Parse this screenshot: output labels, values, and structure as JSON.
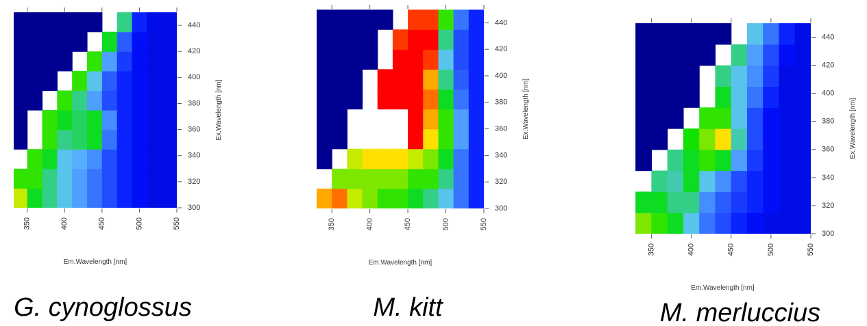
{
  "chart_data": [
    {
      "type": "heatmap",
      "title": "G. cynoglossus",
      "xlabel": "Em.Wavelength [nm]",
      "ylabel": "Ex.Wavelength [nm]",
      "xlim": [
        332,
        550
      ],
      "ylim": [
        300,
        450
      ],
      "xticks": [
        350,
        400,
        450,
        500,
        550
      ],
      "yticks": [
        300,
        320,
        340,
        360,
        380,
        400,
        420,
        440
      ],
      "x": [
        340,
        360,
        380,
        400,
        420,
        440,
        460,
        480,
        500,
        520,
        540
      ],
      "y": [
        307.5,
        322.5,
        337.5,
        352.5,
        367.5,
        382.5,
        397.5,
        412.5,
        427.5,
        442.5
      ],
      "z": [
        [
          60,
          45,
          40,
          35,
          30,
          25,
          20,
          15,
          12,
          10,
          10
        ],
        [
          50,
          50,
          40,
          35,
          30,
          25,
          20,
          15,
          12,
          10,
          10
        ],
        [
          null,
          50,
          45,
          35,
          32,
          28,
          20,
          15,
          12,
          10,
          10
        ],
        [
          0,
          null,
          50,
          40,
          42,
          45,
          25,
          15,
          12,
          10,
          10
        ],
        [
          0,
          null,
          50,
          45,
          42,
          45,
          28,
          15,
          12,
          10,
          10
        ],
        [
          0,
          0,
          null,
          50,
          40,
          30,
          20,
          15,
          12,
          10,
          10
        ],
        [
          0,
          0,
          0,
          null,
          50,
          35,
          22,
          15,
          12,
          10,
          10
        ],
        [
          0,
          0,
          0,
          0,
          null,
          50,
          30,
          18,
          12,
          10,
          10
        ],
        [
          0,
          0,
          0,
          0,
          0,
          null,
          45,
          22,
          12,
          10,
          10
        ],
        [
          0,
          0,
          0,
          0,
          0,
          0,
          null,
          40,
          15,
          10,
          10
        ]
      ]
    },
    {
      "type": "heatmap",
      "title": "M. kitt",
      "xlabel": "Em.Wavelength [nm]",
      "ylabel": "Ex.Wavelength [nm]",
      "xlim": [
        330,
        550
      ],
      "ylim": [
        300,
        450
      ],
      "xticks": [
        350,
        400,
        450,
        500,
        550
      ],
      "yticks": [
        300,
        320,
        340,
        360,
        380,
        400,
        420,
        440
      ],
      "x": [
        340,
        360,
        380,
        400,
        420,
        440,
        460,
        480,
        500,
        520,
        540
      ],
      "y": [
        307.5,
        322.5,
        337.5,
        352.5,
        367.5,
        382.5,
        397.5,
        412.5,
        427.5,
        442.5
      ],
      "z": [
        [
          70,
          75,
          60,
          55,
          50,
          50,
          45,
          40,
          35,
          25,
          15
        ],
        [
          null,
          55,
          55,
          55,
          55,
          55,
          50,
          50,
          40,
          25,
          15
        ],
        [
          0,
          null,
          60,
          65,
          65,
          65,
          60,
          55,
          45,
          25,
          15
        ],
        [
          0,
          0,
          null,
          null,
          null,
          null,
          85,
          65,
          50,
          30,
          15
        ],
        [
          0,
          0,
          null,
          null,
          null,
          null,
          85,
          70,
          50,
          30,
          15
        ],
        [
          0,
          0,
          0,
          null,
          85,
          85,
          85,
          75,
          45,
          25,
          15
        ],
        [
          0,
          0,
          0,
          null,
          85,
          85,
          85,
          70,
          40,
          22,
          15
        ],
        [
          0,
          0,
          0,
          0,
          null,
          85,
          85,
          80,
          35,
          20,
          15
        ],
        [
          0,
          0,
          0,
          0,
          null,
          80,
          85,
          85,
          40,
          20,
          15
        ],
        [
          0,
          0,
          0,
          0,
          0,
          null,
          80,
          80,
          50,
          25,
          15
        ]
      ]
    },
    {
      "type": "heatmap",
      "title": "M. merluccius",
      "xlabel": "Em.Wavelength [nm]",
      "ylabel": "Ex.Wavelength [nm]",
      "xlim": [
        329,
        550
      ],
      "ylim": [
        300,
        450
      ],
      "xticks": [
        350,
        400,
        450,
        500,
        550
      ],
      "yticks": [
        300,
        320,
        340,
        360,
        380,
        400,
        420,
        440
      ],
      "x": [
        340,
        360,
        380,
        400,
        420,
        440,
        460,
        480,
        500,
        520,
        540
      ],
      "y": [
        307.5,
        322.5,
        337.5,
        352.5,
        367.5,
        382.5,
        397.5,
        412.5,
        427.5,
        442.5
      ],
      "z": [
        [
          55,
          50,
          45,
          35,
          25,
          20,
          15,
          12,
          10,
          10,
          10
        ],
        [
          45,
          45,
          40,
          40,
          28,
          22,
          18,
          15,
          12,
          10,
          10
        ],
        [
          null,
          40,
          38,
          45,
          35,
          28,
          20,
          15,
          12,
          10,
          10
        ],
        [
          0,
          null,
          40,
          45,
          50,
          45,
          30,
          18,
          12,
          10,
          10
        ],
        [
          0,
          0,
          null,
          48,
          55,
          65,
          38,
          20,
          12,
          10,
          10
        ],
        [
          0,
          0,
          0,
          null,
          50,
          50,
          35,
          20,
          12,
          10,
          10
        ],
        [
          0,
          0,
          0,
          0,
          null,
          45,
          35,
          25,
          15,
          10,
          10
        ],
        [
          0,
          0,
          0,
          0,
          null,
          40,
          35,
          28,
          18,
          10,
          10
        ],
        [
          0,
          0,
          0,
          0,
          0,
          null,
          40,
          30,
          20,
          12,
          10
        ],
        [
          0,
          0,
          0,
          0,
          0,
          0,
          null,
          35,
          25,
          15,
          10
        ]
      ]
    }
  ]
}
